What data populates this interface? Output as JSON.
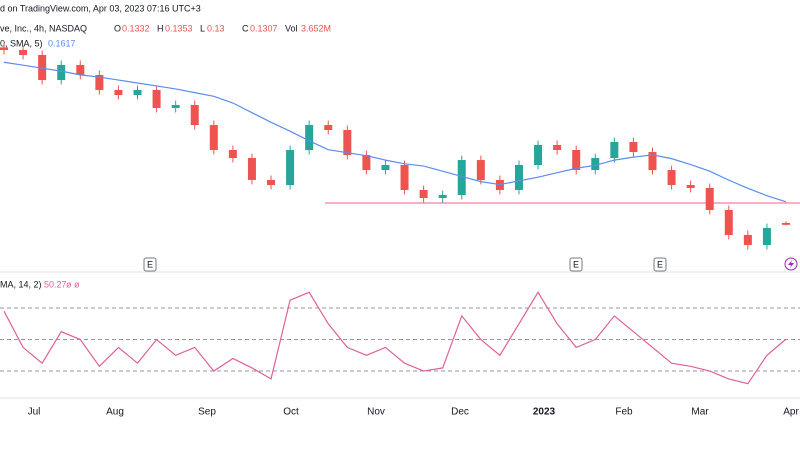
{
  "chart_data": [
    {
      "type": "candlestick",
      "title": "d on TradingView.com, Apr 03, 2023 07:16 UTC+3",
      "symbol": "ve, Inc., 4h, NASDAQ",
      "ohlc_labels": [
        "O",
        "H",
        "L",
        "C"
      ],
      "volume_label": "Vol",
      "volume": "3.652M",
      "ylim": [
        0.09,
        0.38
      ],
      "xtick_labels": [
        "Jul",
        "Aug",
        "Sep",
        "Oct",
        "Nov",
        "Dec",
        "2023",
        "Feb",
        "Mar",
        "Apr"
      ],
      "up_color": "#26a69a",
      "down_color": "#ef5350",
      "candles": {
        "open": [
          0.37,
          0.3665,
          0.3598,
          0.326,
          0.3463,
          0.3328,
          0.3126,
          0.3058,
          0.3126,
          0.2883,
          0.2923,
          0.2653,
          0.2316,
          0.2208,
          0.1912,
          0.1844,
          0.2316,
          0.2653,
          0.2586,
          0.2249,
          0.2046,
          0.2114,
          0.1777,
          0.1669,
          0.1709,
          0.2181,
          0.1912,
          0.1777,
          0.2114,
          0.2384,
          0.2316,
          0.2046,
          0.2208,
          0.2424,
          0.2289,
          0.2046,
          0.1844,
          0.1804,
          0.1507,
          0.117,
          0.1035,
          0.1332
        ],
        "high": [
          0.376,
          0.3725,
          0.3658,
          0.3523,
          0.3523,
          0.3388,
          0.3186,
          0.3186,
          0.3186,
          0.2983,
          0.2983,
          0.2713,
          0.2376,
          0.2268,
          0.1972,
          0.2376,
          0.2713,
          0.2713,
          0.2646,
          0.2309,
          0.2174,
          0.2174,
          0.1837,
          0.1769,
          0.2241,
          0.2241,
          0.1972,
          0.2174,
          0.2444,
          0.2444,
          0.2376,
          0.2268,
          0.2484,
          0.2484,
          0.2349,
          0.2106,
          0.1904,
          0.1864,
          0.1567,
          0.123,
          0.1324,
          0.1353
        ],
        "low": [
          0.3605,
          0.3538,
          0.32,
          0.32,
          0.3268,
          0.3066,
          0.2998,
          0.2998,
          0.2823,
          0.2823,
          0.2593,
          0.2256,
          0.2148,
          0.1852,
          0.1784,
          0.1784,
          0.2256,
          0.2526,
          0.2189,
          0.1986,
          0.1986,
          0.1717,
          0.1609,
          0.1609,
          0.1649,
          0.1852,
          0.1717,
          0.1717,
          0.2054,
          0.2256,
          0.1986,
          0.1986,
          0.2148,
          0.2229,
          0.1986,
          0.1784,
          0.1744,
          0.1447,
          0.111,
          0.0975,
          0.0975,
          0.13
        ],
        "close": [
          0.3665,
          0.3598,
          0.326,
          0.3463,
          0.3328,
          0.3126,
          0.3058,
          0.3126,
          0.2883,
          0.2923,
          0.2653,
          0.2316,
          0.2208,
          0.1912,
          0.1844,
          0.2316,
          0.2653,
          0.2586,
          0.2249,
          0.2046,
          0.2114,
          0.1777,
          0.1669,
          0.1709,
          0.2181,
          0.1912,
          0.1777,
          0.2114,
          0.2384,
          0.2316,
          0.2046,
          0.2208,
          0.2424,
          0.2289,
          0.2046,
          0.1844,
          0.1804,
          0.1507,
          0.117,
          0.1035,
          0.1264,
          0.1307
        ]
      },
      "series": [
        {
          "name": "0, SMA, 5)",
          "color": "#5b8def",
          "values": [
            0.35,
            0.346,
            0.342,
            0.338,
            0.333,
            0.33,
            0.326,
            0.322,
            0.318,
            0.314,
            0.309,
            0.304,
            0.295,
            0.282,
            0.269,
            0.257,
            0.244,
            0.232,
            0.228,
            0.224,
            0.218,
            0.213,
            0.21,
            0.203,
            0.196,
            0.189,
            0.185,
            0.19,
            0.195,
            0.201,
            0.207,
            0.211,
            0.218,
            0.222,
            0.225,
            0.22,
            0.212,
            0.203,
            0.191,
            0.18,
            0.17,
            0.1617
          ]
        }
      ],
      "hline": {
        "value": 0.1601,
        "color": "#f06292"
      },
      "events": [
        "E",
        "E",
        "E"
      ]
    },
    {
      "type": "line",
      "name": "MA, 14, 2)",
      "extra": "ø ø",
      "color": "#e0609a",
      "ylim": [
        14.8,
        87.8
      ],
      "levels": [
        70,
        50,
        30
      ],
      "values": [
        68,
        45,
        35,
        55,
        50,
        33,
        45,
        35,
        50,
        40,
        45,
        30,
        38,
        32,
        25,
        75,
        80,
        60,
        45,
        40,
        45,
        35,
        30,
        32,
        65,
        50,
        40,
        60,
        80,
        60,
        45,
        50,
        65,
        55,
        45,
        35,
        33,
        30,
        25,
        22,
        40,
        50.27
      ]
    }
  ]
}
